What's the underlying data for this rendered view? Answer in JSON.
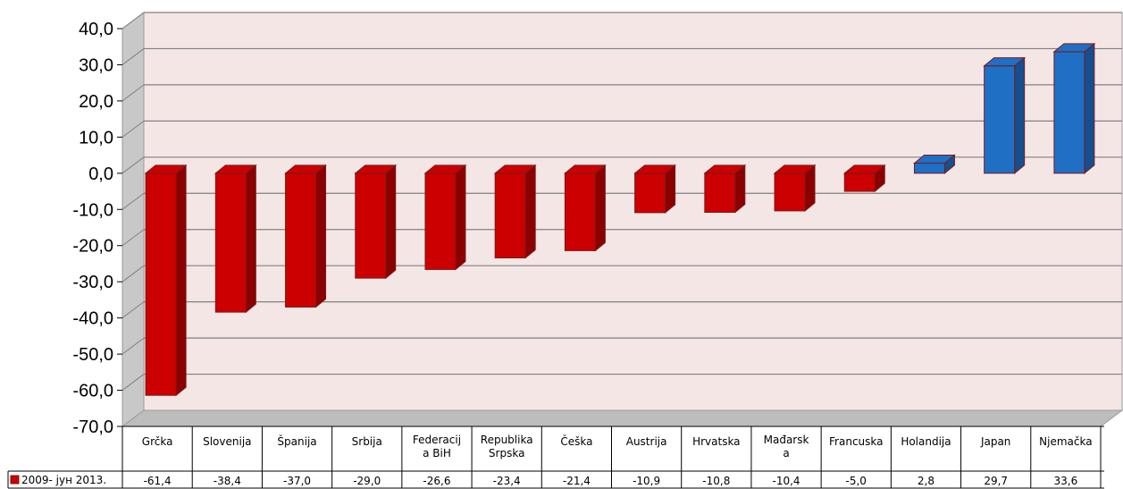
{
  "chart_data": {
    "type": "bar",
    "categories": [
      "Grčka",
      "Slovenija",
      "Španija",
      "Srbija",
      "Federacija BiH",
      "Republika Srpska",
      "Češka",
      "Austrija",
      "Hrvatska",
      "Mađarska",
      "Francuska",
      "Holandija",
      "Japan",
      "Njemačka"
    ],
    "category_lines": [
      [
        "Grčka"
      ],
      [
        "Slovenija"
      ],
      [
        "Španija"
      ],
      [
        "Srbija"
      ],
      [
        "Federacij",
        "a BiH"
      ],
      [
        "Republika",
        "Srpska"
      ],
      [
        "Češka"
      ],
      [
        "Austrija"
      ],
      [
        "Hrvatska"
      ],
      [
        "Mađarsk",
        "a"
      ],
      [
        "Francuska"
      ],
      [
        "Holandija"
      ],
      [
        "Japan"
      ],
      [
        "Njemačka"
      ]
    ],
    "series": [
      {
        "name": "2009- јун 2013.",
        "values": [
          -61.4,
          -38.4,
          -37.0,
          -29.0,
          -26.6,
          -23.4,
          -21.4,
          -10.9,
          -10.8,
          -10.4,
          -5.0,
          2.8,
          29.7,
          33.6
        ]
      }
    ],
    "value_labels": [
      "-61,4",
      "-38,4",
      "-37,0",
      "-29,0",
      "-26,6",
      "-23,4",
      "-21,4",
      "-10,9",
      "-10,8",
      "-10,4",
      "-5,0",
      "2,8",
      "29,7",
      "33,6"
    ],
    "y_ticks": [
      "40,0",
      "30,0",
      "20,0",
      "10,0",
      "0,0",
      "-10,0",
      "-20,0",
      "-30,0",
      "-40,0",
      "-50,0",
      "-60,0",
      "-70,0"
    ],
    "ylim": [
      -70,
      40
    ],
    "grid": true,
    "legend_placement": "data-table",
    "colors": {
      "negative": "#cc0000",
      "negative_side": "#8b0000",
      "positive": "#1f6fc5",
      "positive_side": "#154f8f",
      "plot_background": "#f5e6e6",
      "gridline": "#808080"
    }
  }
}
